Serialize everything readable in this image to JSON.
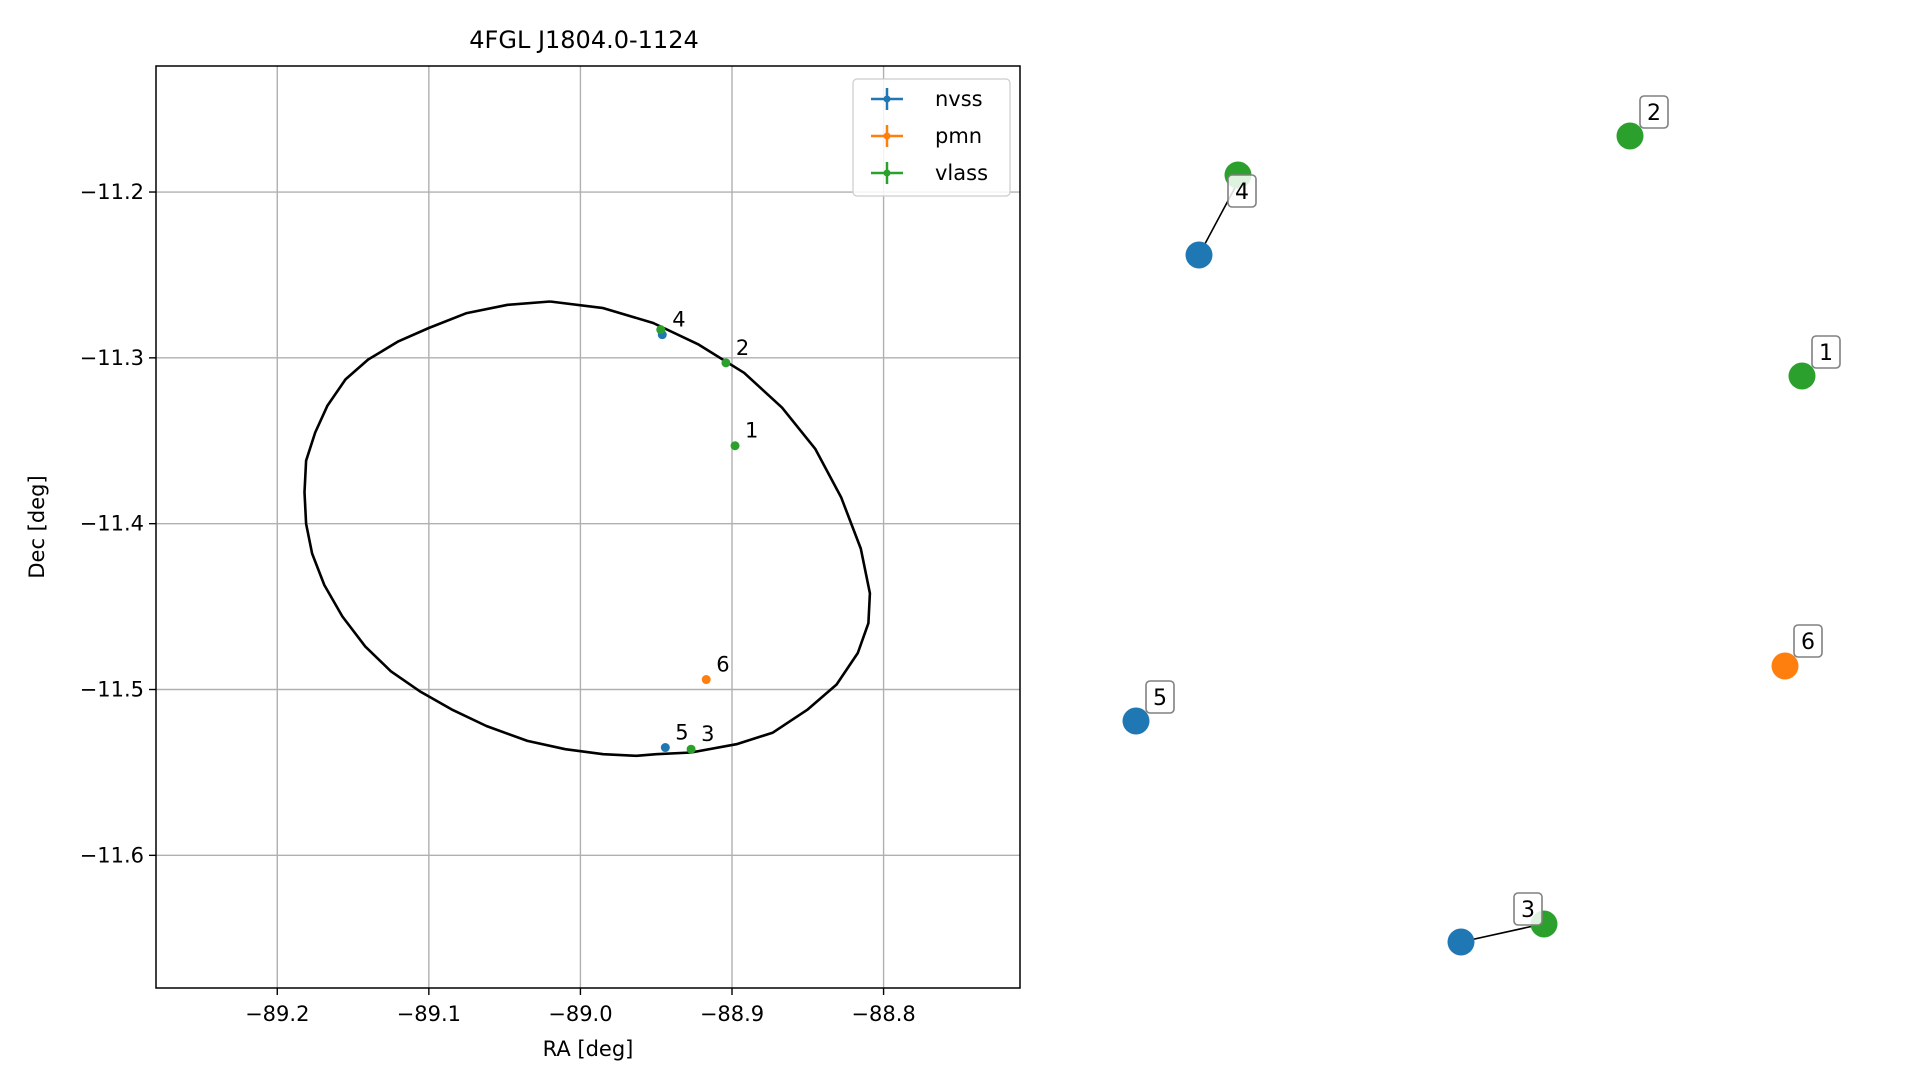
{
  "chart_data": [
    {
      "type": "scatter",
      "title": "4FGL J1804.0-1124",
      "xlabel": "RA [deg]",
      "ylabel": "Dec [deg]",
      "xlim": [
        -89.28,
        -88.71
      ],
      "ylim": [
        -11.68,
        -11.124
      ],
      "xticks": [
        -89.2,
        -89.1,
        -89.0,
        -88.9,
        -88.8
      ],
      "yticks": [
        -11.2,
        -11.3,
        -11.4,
        -11.5,
        -11.6
      ],
      "xtick_labels": [
        "−89.2",
        "−89.1",
        "−89.0",
        "−88.9",
        "−88.8"
      ],
      "ytick_labels": [
        "−11.2",
        "−11.3",
        "−11.4",
        "−11.5",
        "−11.6"
      ],
      "grid": true,
      "legend_placement": "top-right",
      "series": [
        {
          "name": "nvss",
          "color": "#1f77b4",
          "points": [
            {
              "label": "4",
              "x": -88.946,
              "y": -11.286
            },
            {
              "label": "5",
              "x": -88.944,
              "y": -11.535
            }
          ]
        },
        {
          "name": "pmn",
          "color": "#ff7f0e",
          "points": [
            {
              "label": "6",
              "x": -88.917,
              "y": -11.494
            }
          ]
        },
        {
          "name": "vlass",
          "color": "#2ca02c",
          "points": [
            {
              "label": "1",
              "x": -88.898,
              "y": -11.353
            },
            {
              "label": "2",
              "x": -88.904,
              "y": -11.303
            },
            {
              "label": "3",
              "x": -88.927,
              "y": -11.536
            },
            {
              "label": "4",
              "x": -88.947,
              "y": -11.283
            }
          ]
        }
      ],
      "error_ellipse": {
        "color": "#000000",
        "vertices": [
          [
            -89.02,
            -11.266
          ],
          [
            -88.985,
            -11.27
          ],
          [
            -88.952,
            -11.279
          ],
          [
            -88.922,
            -11.292
          ],
          [
            -88.892,
            -11.309
          ],
          [
            -88.867,
            -11.33
          ],
          [
            -88.845,
            -11.355
          ],
          [
            -88.828,
            -11.384
          ],
          [
            -88.815,
            -11.415
          ],
          [
            -88.809,
            -11.442
          ],
          [
            -88.81,
            -11.46
          ],
          [
            -88.817,
            -11.478
          ],
          [
            -88.831,
            -11.497
          ],
          [
            -88.85,
            -11.512
          ],
          [
            -88.873,
            -11.526
          ],
          [
            -88.897,
            -11.533
          ],
          [
            -88.927,
            -11.538
          ],
          [
            -88.95,
            -11.539
          ],
          [
            -88.963,
            -11.54
          ],
          [
            -88.985,
            -11.539
          ],
          [
            -89.01,
            -11.536
          ],
          [
            -89.035,
            -11.531
          ],
          [
            -89.062,
            -11.522
          ],
          [
            -89.085,
            -11.512
          ],
          [
            -89.106,
            -11.501
          ],
          [
            -89.125,
            -11.489
          ],
          [
            -89.142,
            -11.474
          ],
          [
            -89.157,
            -11.456
          ],
          [
            -89.169,
            -11.437
          ],
          [
            -89.177,
            -11.418
          ],
          [
            -89.181,
            -11.4
          ],
          [
            -89.182,
            -11.381
          ],
          [
            -89.181,
            -11.362
          ],
          [
            -89.175,
            -11.345
          ],
          [
            -89.167,
            -11.329
          ],
          [
            -89.155,
            -11.313
          ],
          [
            -89.14,
            -11.301
          ],
          [
            -89.12,
            -11.29
          ],
          [
            -89.1,
            -11.282
          ],
          [
            -89.075,
            -11.273
          ],
          [
            -89.048,
            -11.268
          ],
          [
            -89.02,
            -11.266
          ]
        ]
      }
    },
    {
      "type": "scatter",
      "title": "",
      "grid": false,
      "series": [
        {
          "name": "nvss",
          "color": "#1f77b4",
          "points": [
            {
              "label": "4",
              "x": -88.946,
              "y": -11.286
            },
            {
              "label": "5",
              "x": -88.944,
              "y": -11.535
            }
          ]
        },
        {
          "name": "pmn",
          "color": "#ff7f0e",
          "points": [
            {
              "label": "6",
              "x": -88.917,
              "y": -11.494
            }
          ]
        },
        {
          "name": "vlass",
          "color": "#2ca02c",
          "points": [
            {
              "label": "1",
              "x": -88.898,
              "y": -11.353
            },
            {
              "label": "2",
              "x": -88.904,
              "y": -11.303
            },
            {
              "label": "3",
              "x": -88.927,
              "y": -11.536
            },
            {
              "label": "4",
              "x": -88.947,
              "y": -11.283
            }
          ]
        }
      ]
    }
  ]
}
